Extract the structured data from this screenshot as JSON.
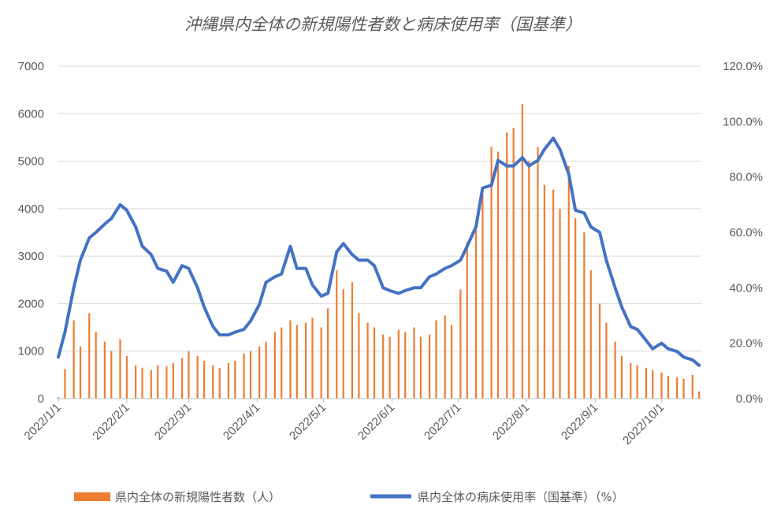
{
  "chart_data": {
    "type": "bar+line",
    "title": "沖縄県内全体の新規陽性者数と病床使用率（国基準）",
    "x_start": "2022-01-01",
    "x_end": "2022-10-19",
    "x_ticks": [
      "2022/1/1",
      "2022/2/1",
      "2022/3/1",
      "2022/4/1",
      "2022/5/1",
      "2022/6/1",
      "2022/7/1",
      "2022/8/1",
      "2022/9/1",
      "2022/10/1"
    ],
    "y_left": {
      "min": 0,
      "max": 7000,
      "ticks": [
        "0",
        "1000",
        "2000",
        "3000",
        "4000",
        "5000",
        "6000",
        "7000"
      ]
    },
    "y_right": {
      "min": 0,
      "max": 1.2,
      "ticks": [
        "0.0%",
        "20.0%",
        "40.0%",
        "60.0%",
        "80.0%",
        "100.0%",
        "120.0%"
      ]
    },
    "grid": true,
    "legend_position": "bottom",
    "series": [
      {
        "name": "県内全体の新規陽性者数（人）",
        "kind": "bar",
        "axis": "left",
        "color": "#ed7d31",
        "x": [
          "2022-01-01",
          "2022-01-04",
          "2022-01-08",
          "2022-01-11",
          "2022-01-15",
          "2022-01-18",
          "2022-01-22",
          "2022-01-25",
          "2022-01-29",
          "2022-02-01",
          "2022-02-05",
          "2022-02-08",
          "2022-02-12",
          "2022-02-15",
          "2022-02-19",
          "2022-02-22",
          "2022-02-26",
          "2022-03-01",
          "2022-03-05",
          "2022-03-08",
          "2022-03-12",
          "2022-03-15",
          "2022-03-19",
          "2022-03-22",
          "2022-03-26",
          "2022-03-29",
          "2022-04-02",
          "2022-04-05",
          "2022-04-09",
          "2022-04-12",
          "2022-04-16",
          "2022-04-19",
          "2022-04-23",
          "2022-04-26",
          "2022-04-30",
          "2022-05-03",
          "2022-05-07",
          "2022-05-10",
          "2022-05-14",
          "2022-05-17",
          "2022-05-21",
          "2022-05-24",
          "2022-05-28",
          "2022-05-31",
          "2022-06-04",
          "2022-06-07",
          "2022-06-11",
          "2022-06-14",
          "2022-06-18",
          "2022-06-21",
          "2022-06-25",
          "2022-06-28",
          "2022-07-02",
          "2022-07-05",
          "2022-07-09",
          "2022-07-12",
          "2022-07-16",
          "2022-07-19",
          "2022-07-23",
          "2022-07-26",
          "2022-07-30",
          "2022-08-02",
          "2022-08-06",
          "2022-08-09",
          "2022-08-13",
          "2022-08-16",
          "2022-08-20",
          "2022-08-23",
          "2022-08-27",
          "2022-08-30",
          "2022-09-03",
          "2022-09-06",
          "2022-09-10",
          "2022-09-13",
          "2022-09-17",
          "2022-09-20",
          "2022-09-24",
          "2022-09-27",
          "2022-10-01",
          "2022-10-04",
          "2022-10-08",
          "2022-10-11",
          "2022-10-15",
          "2022-10-18"
        ],
        "values": [
          30,
          620,
          1650,
          1100,
          1800,
          1400,
          1200,
          1000,
          1250,
          900,
          700,
          650,
          600,
          700,
          680,
          750,
          850,
          1000,
          900,
          800,
          700,
          650,
          750,
          800,
          950,
          1000,
          1100,
          1200,
          1400,
          1500,
          1650,
          1550,
          1600,
          1700,
          1500,
          1900,
          2700,
          2300,
          2450,
          1800,
          1600,
          1500,
          1350,
          1300,
          1450,
          1400,
          1500,
          1300,
          1350,
          1650,
          1750,
          1550,
          2300,
          3300,
          3600,
          4300,
          5300,
          5200,
          5600,
          5700,
          6200,
          5000,
          5300,
          4500,
          4400,
          4000,
          4900,
          3800,
          3500,
          2700,
          2000,
          1600,
          1200,
          900,
          750,
          700,
          650,
          600,
          550,
          480,
          450,
          420,
          500,
          150
        ]
      },
      {
        "name": "県内全体の病床使用率（国基準）（%）",
        "kind": "line",
        "axis": "right",
        "color": "#4472c4",
        "x": [
          "2022-01-01",
          "2022-01-04",
          "2022-01-08",
          "2022-01-11",
          "2022-01-15",
          "2022-01-18",
          "2022-01-22",
          "2022-01-25",
          "2022-01-29",
          "2022-02-01",
          "2022-02-05",
          "2022-02-08",
          "2022-02-12",
          "2022-02-15",
          "2022-02-19",
          "2022-02-22",
          "2022-02-26",
          "2022-03-01",
          "2022-03-05",
          "2022-03-08",
          "2022-03-12",
          "2022-03-15",
          "2022-03-19",
          "2022-03-22",
          "2022-03-26",
          "2022-03-29",
          "2022-04-02",
          "2022-04-05",
          "2022-04-09",
          "2022-04-12",
          "2022-04-16",
          "2022-04-19",
          "2022-04-23",
          "2022-04-26",
          "2022-04-30",
          "2022-05-03",
          "2022-05-07",
          "2022-05-10",
          "2022-05-14",
          "2022-05-17",
          "2022-05-21",
          "2022-05-24",
          "2022-05-28",
          "2022-05-31",
          "2022-06-04",
          "2022-06-07",
          "2022-06-11",
          "2022-06-14",
          "2022-06-18",
          "2022-06-21",
          "2022-06-25",
          "2022-06-28",
          "2022-07-02",
          "2022-07-05",
          "2022-07-09",
          "2022-07-12",
          "2022-07-16",
          "2022-07-19",
          "2022-07-23",
          "2022-07-26",
          "2022-07-30",
          "2022-08-02",
          "2022-08-06",
          "2022-08-09",
          "2022-08-13",
          "2022-08-16",
          "2022-08-20",
          "2022-08-23",
          "2022-08-27",
          "2022-08-30",
          "2022-09-03",
          "2022-09-06",
          "2022-09-10",
          "2022-09-13",
          "2022-09-17",
          "2022-09-20",
          "2022-09-24",
          "2022-09-27",
          "2022-10-01",
          "2022-10-04",
          "2022-10-08",
          "2022-10-11",
          "2022-10-15",
          "2022-10-18"
        ],
        "values": [
          0.15,
          0.24,
          0.4,
          0.5,
          0.58,
          0.6,
          0.63,
          0.65,
          0.7,
          0.68,
          0.62,
          0.55,
          0.52,
          0.47,
          0.46,
          0.42,
          0.48,
          0.47,
          0.4,
          0.33,
          0.26,
          0.23,
          0.23,
          0.24,
          0.25,
          0.28,
          0.34,
          0.42,
          0.44,
          0.45,
          0.55,
          0.47,
          0.47,
          0.41,
          0.37,
          0.38,
          0.53,
          0.56,
          0.52,
          0.5,
          0.5,
          0.48,
          0.4,
          0.39,
          0.38,
          0.39,
          0.4,
          0.4,
          0.44,
          0.45,
          0.47,
          0.48,
          0.5,
          0.55,
          0.62,
          0.76,
          0.77,
          0.86,
          0.84,
          0.84,
          0.87,
          0.84,
          0.86,
          0.9,
          0.94,
          0.9,
          0.81,
          0.68,
          0.67,
          0.62,
          0.6,
          0.5,
          0.4,
          0.33,
          0.26,
          0.25,
          0.21,
          0.18,
          0.2,
          0.18,
          0.17,
          0.15,
          0.14,
          0.12
        ]
      }
    ]
  }
}
